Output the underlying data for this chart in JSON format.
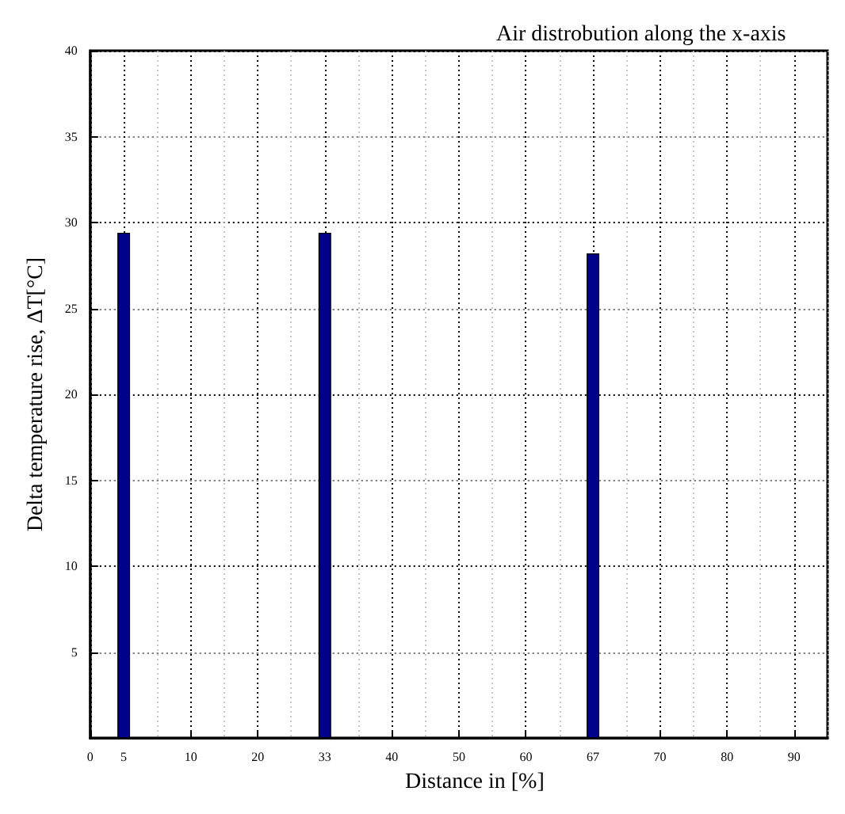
{
  "chart_data": {
    "type": "bar",
    "title": "Air distrobution along the x-axis",
    "xlabel": "Distance in [%]",
    "ylabel": "Delta temperature rise, ΔT[°C]",
    "categories": [
      "0",
      "5",
      null,
      "10",
      null,
      "20",
      null,
      "33",
      null,
      "40",
      null,
      "50",
      null,
      "60",
      null,
      "67",
      null,
      "70",
      null,
      "80",
      null,
      "90",
      null
    ],
    "series": [
      {
        "color": "#00008b",
        "values": [
          null,
          29.4,
          null,
          null,
          null,
          null,
          null,
          29.4,
          null,
          null,
          null,
          null,
          null,
          null,
          null,
          28.2,
          null,
          null,
          null,
          null,
          null,
          null,
          null
        ]
      }
    ],
    "ylim": [
      0,
      40
    ],
    "yticks": [
      5,
      10,
      15,
      20,
      25,
      30,
      35,
      40
    ],
    "grid": true
  }
}
